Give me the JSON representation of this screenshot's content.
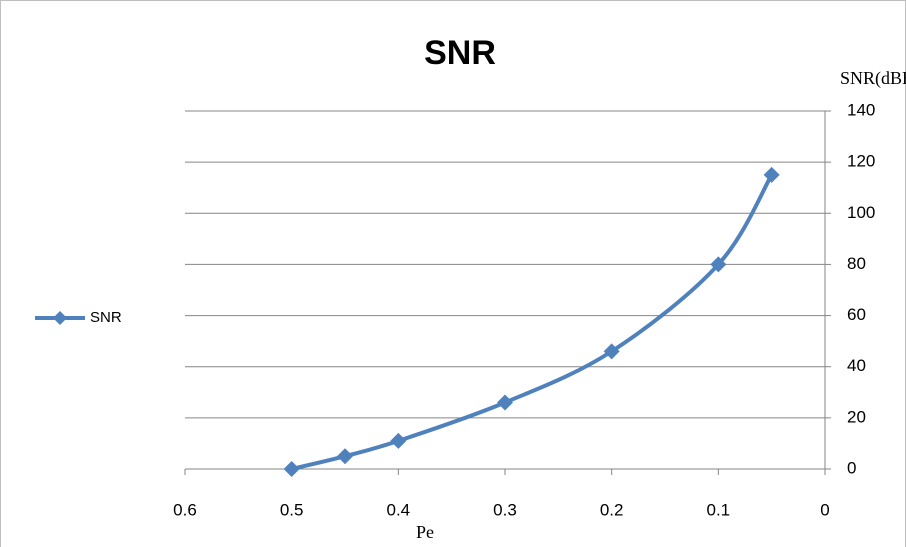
{
  "chart_data": {
    "type": "line",
    "title": "SNR",
    "x_label": "Pe",
    "y_label": "SNR(dBHz)",
    "x": [
      0.5,
      0.45,
      0.4,
      0.3,
      0.2,
      0.1,
      0.05
    ],
    "series": [
      {
        "name": "SNR",
        "color": "#4f81bd",
        "values": [
          0,
          5,
          11,
          26,
          46,
          80,
          115
        ]
      }
    ],
    "xlim": [
      0.6,
      0
    ],
    "xticks": [
      0.6,
      0.5,
      0.4,
      0.3,
      0.2,
      0.1,
      0
    ],
    "ylim": [
      0,
      140
    ],
    "yticks": [
      0,
      20,
      40,
      60,
      80,
      100,
      120,
      140
    ],
    "grid": true,
    "y_axis_side": "right",
    "legend": "left",
    "smooth": true,
    "marker": "diamond"
  }
}
